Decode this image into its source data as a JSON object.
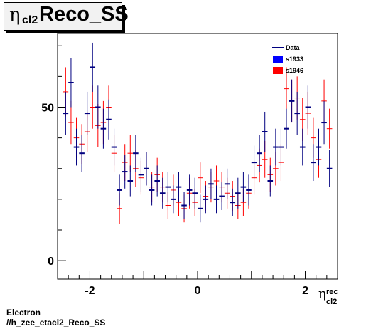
{
  "title": {
    "symbol": "η",
    "subscript": "cl2",
    "text": "Reco_SS"
  },
  "footer": {
    "line1": "Electron",
    "line2": "//h_zee_etacl2_Reco_SS"
  },
  "x_axis_label": {
    "symbol": "η",
    "superscript": "rec",
    "subscript": "cl2"
  },
  "chart_data": {
    "type": "scatter",
    "xlim": [
      -2.6,
      2.6
    ],
    "ylim": [
      -6,
      74
    ],
    "x_ticks": [
      -2,
      0,
      2
    ],
    "x_tick_labels": [
      "-2",
      "0",
      "2"
    ],
    "y_ticks": [
      0,
      50
    ],
    "y_tick_labels": [
      "0",
      "50"
    ],
    "grid": false,
    "legend_placement": "top-right",
    "legend": [
      {
        "label": "Data",
        "color": "#000080",
        "style": "line"
      },
      {
        "label": "s1933",
        "color": "#0000ff",
        "style": "box"
      },
      {
        "label": "s1946",
        "color": "#ff0000",
        "style": "box"
      }
    ],
    "series": [
      {
        "name": "s1946",
        "color": "#ff0000",
        "points": [
          [
            -2.45,
            55,
            8
          ],
          [
            -2.35,
            45,
            7
          ],
          [
            -2.25,
            40,
            6.5
          ],
          [
            -2.15,
            38,
            6.5
          ],
          [
            -2.05,
            42,
            6.5
          ],
          [
            -1.95,
            50,
            7
          ],
          [
            -1.85,
            44,
            7
          ],
          [
            -1.75,
            45,
            7
          ],
          [
            -1.65,
            50,
            7
          ],
          [
            -1.55,
            35,
            6
          ],
          [
            -1.45,
            17,
            5
          ],
          [
            -1.35,
            32,
            6
          ],
          [
            -1.25,
            35,
            6
          ],
          [
            -1.15,
            30,
            6
          ],
          [
            -1.05,
            27,
            5.5
          ],
          [
            -0.95,
            30,
            5.5
          ],
          [
            -0.85,
            24,
            5
          ],
          [
            -0.75,
            28,
            5.5
          ],
          [
            -0.65,
            24,
            5
          ],
          [
            -0.55,
            18,
            4.5
          ],
          [
            -0.45,
            23,
            5
          ],
          [
            -0.35,
            19,
            4.5
          ],
          [
            -0.25,
            17,
            4.5
          ],
          [
            -0.15,
            22,
            5
          ],
          [
            -0.05,
            19,
            4.5
          ],
          [
            0.05,
            27,
            5
          ],
          [
            0.15,
            21,
            5
          ],
          [
            0.25,
            24,
            5
          ],
          [
            0.35,
            26,
            5
          ],
          [
            0.45,
            24,
            5
          ],
          [
            0.55,
            22,
            5
          ],
          [
            0.65,
            21,
            5
          ],
          [
            0.75,
            18,
            4.5
          ],
          [
            0.85,
            19,
            4.5
          ],
          [
            0.95,
            22,
            5
          ],
          [
            1.05,
            27,
            5.5
          ],
          [
            1.15,
            31,
            5.5
          ],
          [
            1.25,
            33,
            6
          ],
          [
            1.35,
            28,
            5.5
          ],
          [
            1.45,
            30,
            5.5
          ],
          [
            1.55,
            32,
            6
          ],
          [
            1.65,
            56,
            7
          ],
          [
            1.75,
            52,
            7
          ],
          [
            1.85,
            53,
            7
          ],
          [
            1.95,
            46,
            7
          ],
          [
            2.05,
            48,
            7
          ],
          [
            2.15,
            40,
            6.5
          ],
          [
            2.25,
            33,
            6
          ],
          [
            2.35,
            52,
            7
          ],
          [
            2.45,
            43,
            6.5
          ]
        ]
      },
      {
        "name": "Data",
        "color": "#000080",
        "points": [
          [
            -2.45,
            48,
            7
          ],
          [
            -2.35,
            58,
            8
          ],
          [
            -2.25,
            37,
            6
          ],
          [
            -2.15,
            35,
            6
          ],
          [
            -2.05,
            48,
            7
          ],
          [
            -1.95,
            63,
            8
          ],
          [
            -1.85,
            50,
            7
          ],
          [
            -1.75,
            43,
            6.5
          ],
          [
            -1.65,
            46,
            6.5
          ],
          [
            -1.55,
            37,
            6
          ],
          [
            -1.45,
            23,
            5
          ],
          [
            -1.35,
            29,
            5.5
          ],
          [
            -1.25,
            26,
            5
          ],
          [
            -1.15,
            35,
            6
          ],
          [
            -1.05,
            28,
            5.5
          ],
          [
            -0.95,
            30,
            5.5
          ],
          [
            -0.85,
            23,
            5
          ],
          [
            -0.75,
            26,
            5
          ],
          [
            -0.65,
            22,
            5
          ],
          [
            -0.55,
            24,
            5
          ],
          [
            -0.45,
            20,
            4.5
          ],
          [
            -0.35,
            24,
            5
          ],
          [
            -0.25,
            18,
            4.5
          ],
          [
            -0.15,
            23,
            5
          ],
          [
            -0.05,
            22,
            5
          ],
          [
            0.05,
            17,
            4.5
          ],
          [
            0.15,
            20,
            4.5
          ],
          [
            0.25,
            25,
            5
          ],
          [
            0.35,
            20,
            4.5
          ],
          [
            0.45,
            21,
            4.5
          ],
          [
            0.55,
            25,
            5
          ],
          [
            0.65,
            19,
            4.5
          ],
          [
            0.75,
            22,
            5
          ],
          [
            0.85,
            24,
            5
          ],
          [
            0.95,
            23,
            5
          ],
          [
            1.05,
            32,
            5.5
          ],
          [
            1.15,
            35,
            6
          ],
          [
            1.25,
            42,
            6.5
          ],
          [
            1.35,
            26,
            5
          ],
          [
            1.45,
            37,
            6
          ],
          [
            1.55,
            37,
            6
          ],
          [
            1.65,
            43,
            6.5
          ],
          [
            1.75,
            52,
            7
          ],
          [
            1.85,
            48,
            7
          ],
          [
            1.95,
            37,
            6
          ],
          [
            2.05,
            50,
            7
          ],
          [
            2.15,
            32,
            6
          ],
          [
            2.25,
            37,
            6
          ],
          [
            2.35,
            45,
            7
          ],
          [
            2.45,
            30,
            6
          ]
        ]
      }
    ]
  }
}
